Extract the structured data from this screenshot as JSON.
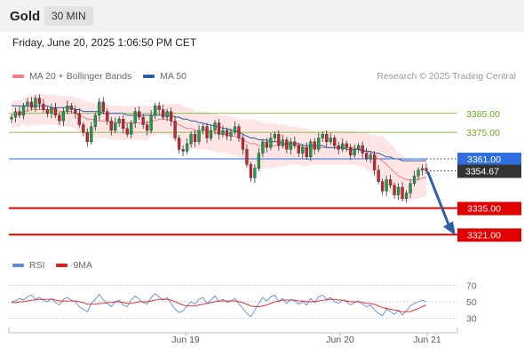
{
  "header": {
    "title": "Gold",
    "timeframe": "30 MIN",
    "datetime": "Friday, June 20, 2025 1:06:50 PM CET"
  },
  "legend": {
    "items": [
      {
        "label": "MA 20 + Bollinger Bands",
        "color": "#f08080"
      },
      {
        "label": "MA 50",
        "color": "#2d5fa8"
      }
    ],
    "credit": "Research © 2025 Trading Central"
  },
  "rsi_legend": {
    "items": [
      {
        "label": "RSI",
        "color": "#5b8dd9"
      },
      {
        "label": "9MA",
        "color": "#e02020"
      }
    ]
  },
  "colors": {
    "resistance": "#6aaa1e",
    "support": "#e00000",
    "pivot": "#2f6fe0",
    "current": "#333333",
    "arrow": "#2d5fa8"
  },
  "chart_data": [
    {
      "type": "candlestick",
      "ylim": [
        3309,
        3398
      ],
      "x_tick_labels": [
        "Jun 19",
        "Jun 20",
        "Jun 21"
      ],
      "levels": [
        {
          "label": "3385.00",
          "value": 3385,
          "kind": "resistance"
        },
        {
          "label": "3375.00",
          "value": 3375,
          "kind": "resistance"
        },
        {
          "label": "3361.00",
          "value": 3361,
          "kind": "pivot"
        },
        {
          "label": "3354.67",
          "value": 3354.67,
          "kind": "current"
        },
        {
          "label": "3335.00",
          "value": 3335,
          "kind": "support"
        },
        {
          "label": "3321.00",
          "value": 3321,
          "kind": "support"
        }
      ],
      "close": [
        3383,
        3386,
        3384,
        3389,
        3391,
        3388,
        3393,
        3390,
        3387,
        3385,
        3388,
        3384,
        3381,
        3386,
        3389,
        3387,
        3385,
        3379,
        3375,
        3370,
        3378,
        3384,
        3391,
        3386,
        3381,
        3376,
        3380,
        3382,
        3377,
        3374,
        3380,
        3386,
        3383,
        3379,
        3376,
        3384,
        3389,
        3387,
        3383,
        3386,
        3381,
        3372,
        3366,
        3365,
        3369,
        3374,
        3370,
        3376,
        3378,
        3372,
        3376,
        3380,
        3374,
        3376,
        3373,
        3375,
        3378,
        3372,
        3366,
        3358,
        3351,
        3356,
        3364,
        3370,
        3367,
        3372,
        3374,
        3368,
        3371,
        3366,
        3370,
        3368,
        3364,
        3367,
        3362,
        3370,
        3366,
        3372,
        3374,
        3370,
        3372,
        3368,
        3366,
        3369,
        3367,
        3363,
        3366,
        3368,
        3364,
        3361,
        3363,
        3355,
        3349,
        3344,
        3350,
        3347,
        3342,
        3346,
        3340,
        3343,
        3348,
        3352,
        3355,
        3356,
        3354.67
      ],
      "ma20": [
        3384,
        3385,
        3385,
        3386,
        3386,
        3387,
        3387,
        3387,
        3387,
        3387,
        3387,
        3387,
        3386,
        3386,
        3386,
        3386,
        3385,
        3384,
        3383,
        3382,
        3382,
        3381,
        3381,
        3381,
        3381,
        3380,
        3380,
        3380,
        3380,
        3380,
        3380,
        3380,
        3380,
        3380,
        3380,
        3381,
        3381,
        3382,
        3382,
        3382,
        3381,
        3380,
        3379,
        3378,
        3377,
        3377,
        3376,
        3376,
        3376,
        3376,
        3375,
        3375,
        3374,
        3374,
        3374,
        3373,
        3373,
        3372,
        3371,
        3370,
        3369,
        3369,
        3368,
        3368,
        3368,
        3368,
        3368,
        3368,
        3368,
        3368,
        3368,
        3368,
        3368,
        3367,
        3367,
        3367,
        3367,
        3367,
        3367,
        3367,
        3367,
        3367,
        3367,
        3367,
        3367,
        3367,
        3367,
        3366,
        3366,
        3365,
        3364,
        3363,
        3361,
        3360,
        3358,
        3356,
        3354,
        3352,
        3351,
        3350,
        3350,
        3350,
        3350,
        3351,
        3351
      ],
      "bb_width": [
        7,
        7,
        7,
        7,
        8,
        8,
        8,
        8,
        8,
        8,
        8,
        8,
        8,
        8,
        8,
        8,
        8,
        9,
        9,
        9,
        9,
        9,
        9,
        9,
        9,
        9,
        9,
        9,
        9,
        9,
        9,
        9,
        9,
        9,
        9,
        8,
        8,
        8,
        8,
        8,
        9,
        10,
        11,
        11,
        11,
        11,
        10,
        10,
        10,
        10,
        10,
        10,
        10,
        10,
        10,
        10,
        10,
        10,
        11,
        12,
        13,
        13,
        13,
        12,
        12,
        12,
        12,
        11,
        11,
        11,
        10,
        10,
        10,
        10,
        10,
        9,
        9,
        9,
        9,
        9,
        9,
        9,
        9,
        9,
        9,
        9,
        9,
        9,
        9,
        10,
        10,
        11,
        12,
        13,
        13,
        13,
        13,
        12,
        12,
        11,
        11,
        10,
        10,
        10,
        10
      ],
      "ma50": [
        3389,
        3389,
        3389,
        3389,
        3389,
        3389,
        3389,
        3389,
        3389,
        3389,
        3388,
        3388,
        3388,
        3388,
        3388,
        3388,
        3387,
        3387,
        3386,
        3386,
        3386,
        3386,
        3386,
        3385,
        3385,
        3385,
        3385,
        3385,
        3385,
        3384,
        3384,
        3384,
        3384,
        3384,
        3384,
        3384,
        3384,
        3384,
        3384,
        3384,
        3384,
        3383,
        3383,
        3382,
        3382,
        3381,
        3381,
        3380,
        3380,
        3379,
        3379,
        3378,
        3378,
        3377,
        3377,
        3376,
        3376,
        3375,
        3374,
        3373,
        3372,
        3372,
        3371,
        3371,
        3371,
        3370,
        3370,
        3370,
        3369,
        3369,
        3369,
        3369,
        3369,
        3368,
        3368,
        3368,
        3368,
        3368,
        3368,
        3367,
        3367,
        3367,
        3367,
        3367,
        3366,
        3366,
        3366,
        3366,
        3365,
        3365,
        3365,
        3364,
        3364,
        3363,
        3362,
        3362,
        3361,
        3361,
        3360,
        3360,
        3360,
        3360,
        3360,
        3360,
        3360
      ]
    },
    {
      "type": "line",
      "ylim": [
        20,
        80
      ],
      "y_tick_labels": [
        "70",
        "50",
        "30"
      ],
      "series": [
        {
          "name": "RSI",
          "values": [
            50,
            51,
            54,
            52,
            56,
            58,
            53,
            55,
            52,
            50,
            54,
            49,
            46,
            53,
            55,
            52,
            50,
            44,
            41,
            38,
            48,
            53,
            59,
            52,
            48,
            44,
            50,
            52,
            46,
            44,
            52,
            57,
            53,
            49,
            47,
            55,
            60,
            56,
            52,
            55,
            48,
            41,
            37,
            39,
            45,
            50,
            47,
            53,
            55,
            48,
            52,
            57,
            50,
            53,
            49,
            51,
            54,
            47,
            42,
            36,
            32,
            40,
            48,
            55,
            51,
            56,
            58,
            50,
            54,
            48,
            53,
            51,
            47,
            50,
            46,
            54,
            49,
            56,
            58,
            53,
            55,
            50,
            48,
            52,
            50,
            46,
            49,
            51,
            47,
            44,
            46,
            40,
            36,
            33,
            41,
            38,
            35,
            40,
            34,
            39,
            45,
            48,
            50,
            52,
            50
          ]
        },
        {
          "name": "9MA",
          "values": [
            49,
            49,
            50,
            50,
            51,
            52,
            52,
            53,
            53,
            53,
            53,
            52,
            51,
            51,
            51,
            51,
            51,
            50,
            49,
            47,
            47,
            47,
            48,
            48,
            49,
            49,
            50,
            50,
            49,
            48,
            48,
            49,
            50,
            50,
            50,
            51,
            52,
            53,
            53,
            53,
            52,
            50,
            48,
            46,
            45,
            45,
            45,
            46,
            47,
            48,
            49,
            50,
            51,
            51,
            51,
            51,
            51,
            50,
            49,
            47,
            45,
            44,
            44,
            45,
            46,
            48,
            50,
            51,
            52,
            52,
            52,
            52,
            51,
            51,
            50,
            50,
            50,
            51,
            52,
            52,
            53,
            53,
            52,
            52,
            51,
            50,
            50,
            50,
            49,
            48,
            48,
            47,
            45,
            43,
            42,
            41,
            40,
            39,
            38,
            38,
            38,
            40,
            42,
            44,
            46
          ]
        }
      ]
    }
  ]
}
